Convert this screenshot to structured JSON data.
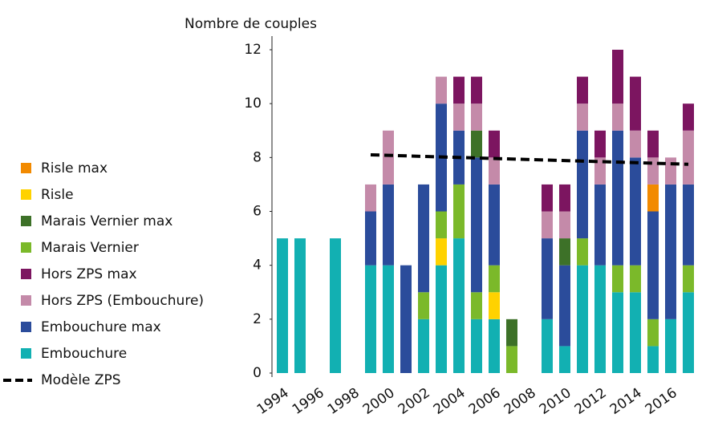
{
  "chart_data": {
    "type": "stacked_bar",
    "y_label": "Nombre de couples",
    "x": [
      1994,
      1995,
      1996,
      1997,
      1998,
      1999,
      2000,
      2001,
      2002,
      2003,
      2004,
      2005,
      2006,
      2007,
      2008,
      2009,
      2010,
      2011,
      2012,
      2013,
      2014,
      2015,
      2016,
      2017
    ],
    "xlim": [
      1993.5,
      2017.5
    ],
    "xticks": [
      1994,
      1996,
      1998,
      2000,
      2002,
      2004,
      2006,
      2008,
      2010,
      2012,
      2014,
      2016
    ],
    "ylim": [
      0,
      12
    ],
    "yticks": [
      0,
      2,
      4,
      6,
      8,
      10,
      12
    ],
    "series": [
      {
        "name": "Embouchure",
        "color": "#12b0b2",
        "values": [
          5,
          5,
          0,
          5,
          0,
          4,
          4,
          0,
          2,
          4,
          5,
          2,
          2,
          0,
          0,
          2,
          1,
          4,
          4,
          3,
          3,
          1,
          2,
          3
        ]
      },
      {
        "name": "Risle",
        "color": "#ffd200",
        "values": [
          0,
          0,
          0,
          0,
          0,
          0,
          0,
          0,
          0,
          1,
          0,
          0,
          1,
          0,
          0,
          0,
          0,
          0,
          0,
          0,
          0,
          0,
          0,
          0
        ]
      },
      {
        "name": "Marais Vernier",
        "color": "#7bb92a",
        "values": [
          0,
          0,
          0,
          0,
          0,
          0,
          0,
          0,
          1,
          1,
          2,
          1,
          1,
          1,
          0,
          0,
          0,
          1,
          0,
          1,
          1,
          1,
          0,
          1
        ]
      },
      {
        "name": "Embouchure max",
        "color": "#2b4c9b",
        "values": [
          0,
          0,
          0,
          0,
          0,
          2,
          3,
          4,
          4,
          4,
          2,
          5,
          3,
          0,
          0,
          3,
          3,
          4,
          3,
          5,
          4,
          4,
          5,
          3
        ]
      },
      {
        "name": "Marais Vernier max",
        "color": "#3d7128",
        "values": [
          0,
          0,
          0,
          0,
          0,
          0,
          0,
          0,
          0,
          0,
          0,
          1,
          0,
          1,
          0,
          0,
          1,
          0,
          0,
          0,
          0,
          0,
          0,
          0
        ]
      },
      {
        "name": "Risle max",
        "color": "#f28a00",
        "values": [
          0,
          0,
          0,
          0,
          0,
          0,
          0,
          0,
          0,
          0,
          0,
          0,
          0,
          0,
          0,
          0,
          0,
          0,
          0,
          0,
          0,
          1,
          0,
          0
        ]
      },
      {
        "name": "Hors ZPS (Embouchure)",
        "color": "#c48aa9",
        "values": [
          0,
          0,
          0,
          0,
          0,
          1,
          2,
          0,
          0,
          1,
          1,
          1,
          1,
          0,
          0,
          1,
          1,
          1,
          1,
          1,
          1,
          1,
          1,
          2
        ]
      },
      {
        "name": "Hors ZPS max",
        "color": "#7c1560",
        "values": [
          0,
          0,
          0,
          0,
          0,
          0,
          0,
          0,
          0,
          0,
          1,
          1,
          1,
          0,
          0,
          1,
          1,
          1,
          1,
          2,
          2,
          1,
          0,
          1
        ]
      }
    ],
    "trend": {
      "name": "Modèle ZPS",
      "color": "#000000",
      "x": [
        1999,
        2017
      ],
      "values": [
        8.1,
        7.75
      ]
    }
  }
}
